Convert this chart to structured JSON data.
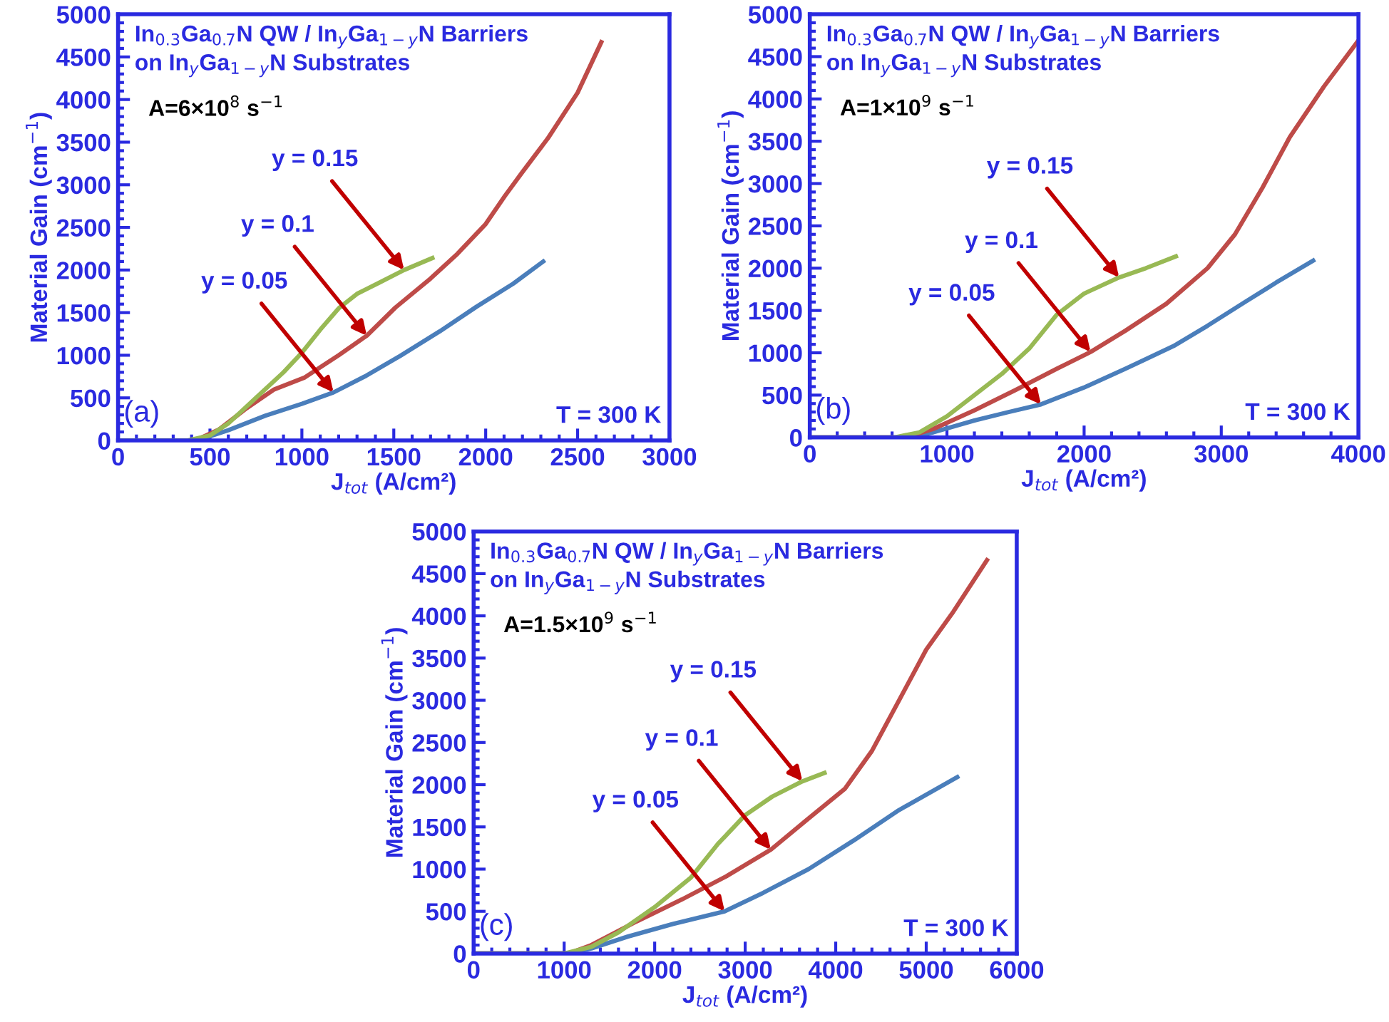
{
  "chart_data": [
    {
      "type": "line",
      "xlabel": "J$_{tot}$ (A/cm²)",
      "ylabel": "Material Gain (cm$^{−1}$)",
      "xlim": [
        0,
        3000
      ],
      "xticks": [
        0,
        500,
        1000,
        1500,
        2000,
        2500,
        3000
      ],
      "ylim": [
        0,
        5000
      ],
      "yticks": [
        0,
        500,
        1000,
        1500,
        2000,
        2500,
        3000,
        3500,
        4000,
        4500,
        5000
      ],
      "grid": false,
      "legend": false,
      "series": [
        {
          "color": "#4a7ebb",
          "x": [
            0,
            430,
            600,
            800,
            1000,
            1172,
            1350,
            1535,
            1750,
            1950,
            2150,
            2313
          ],
          "values": [
            0,
            0,
            120,
            290,
            430,
            564,
            760,
            993,
            1280,
            1569,
            1840,
            2100
          ]
        },
        {
          "color": "#be4b48",
          "x": [
            0,
            420,
            550,
            700,
            850,
            1016,
            1200,
            1353,
            1509,
            1700,
            1846,
            2000,
            2105,
            2200,
            2338,
            2500,
            2629
          ],
          "values": [
            0,
            0,
            130,
            380,
            600,
            740,
            1000,
            1230,
            1560,
            1900,
            2190,
            2540,
            2870,
            3150,
            3544,
            4080,
            4673
          ]
        },
        {
          "color": "#98b954",
          "x": [
            0,
            380,
            500,
            600,
            750,
            900,
            1000,
            1100,
            1200,
            1300,
            1420,
            1556,
            1710
          ],
          "values": [
            0,
            0,
            60,
            200,
            500,
            800,
            1030,
            1300,
            1550,
            1720,
            1850,
            2000,
            2140
          ]
        }
      ],
      "annotations": [
        "In$_{0.3}$Ga$_{0.7}$N QW / In$_{y}$Ga$_{1−y}$N Barriers\non In$_{y}$Ga$_{1−y}$N Substrates",
        "A=6×10$^{8}$ s$^{−1}$",
        "(a)",
        "T = 300 K",
        {
          "text": "y = 0.05",
          "x": 1172,
          "y": 564
        },
        {
          "text": "y = 0.1",
          "x": 1353,
          "y": 1230
        },
        {
          "text": "y = 0.15",
          "x": 1556,
          "y": 2000
        }
      ]
    },
    {
      "type": "line",
      "xlabel": "J$_{tot}$ (A/cm²)",
      "ylabel": "Material Gain (cm$^{−1}$)",
      "xlim": [
        0,
        4000
      ],
      "xticks": [
        0,
        1000,
        2000,
        3000,
        4000
      ],
      "ylim": [
        0,
        5000
      ],
      "yticks": [
        0,
        500,
        1000,
        1500,
        2000,
        2500,
        3000,
        3500,
        4000,
        4500,
        5000
      ],
      "grid": false,
      "legend": false,
      "series": [
        {
          "color": "#4a7ebb",
          "x": [
            0,
            700,
            900,
            1200,
            1450,
            1685,
            2000,
            2300,
            2652,
            2900,
            3173,
            3400,
            3670
          ],
          "values": [
            0,
            0,
            60,
            200,
            300,
            390,
            590,
            810,
            1080,
            1320,
            1600,
            1830,
            2090
          ]
        },
        {
          "color": "#be4b48",
          "x": [
            0,
            700,
            900,
            1200,
            1500,
            1800,
            2047,
            2300,
            2600,
            2900,
            3100,
            3300,
            3500,
            3750,
            3990
          ],
          "values": [
            0,
            0,
            100,
            320,
            560,
            810,
            1010,
            1260,
            1580,
            2000,
            2400,
            2950,
            3550,
            4150,
            4670
          ]
        },
        {
          "color": "#98b954",
          "x": [
            0,
            620,
            800,
            1000,
            1200,
            1400,
            1600,
            1800,
            2000,
            2255,
            2450,
            2669
          ],
          "values": [
            0,
            0,
            60,
            250,
            500,
            750,
            1050,
            1450,
            1700,
            1890,
            2000,
            2140
          ]
        }
      ],
      "annotations": [
        "In$_{0.3}$Ga$_{0.7}$N QW / In$_{y}$Ga$_{1−y}$N Barriers\non In$_{y}$Ga$_{1−y}$N Substrates",
        "A=1×10$^{9}$ s$^{−1}$",
        "(b)",
        "T = 300 K",
        {
          "text": "y = 0.05",
          "x": 1685,
          "y": 390
        },
        {
          "text": "y = 0.1",
          "x": 2047,
          "y": 1010
        },
        {
          "text": "y = 0.15",
          "x": 2255,
          "y": 1890
        }
      ]
    },
    {
      "type": "line",
      "xlabel": "J$_{tot}$ (A/cm²)",
      "ylabel": "Material Gain (cm$^{−1}$)",
      "xlim": [
        0,
        6000
      ],
      "xticks": [
        0,
        1000,
        2000,
        3000,
        4000,
        5000,
        6000
      ],
      "ylim": [
        0,
        5000
      ],
      "yticks": [
        0,
        500,
        1000,
        1500,
        2000,
        2500,
        3000,
        3500,
        4000,
        4500,
        5000
      ],
      "grid": false,
      "legend": false,
      "series": [
        {
          "color": "#4a7ebb",
          "x": [
            0,
            1050,
            1300,
            1700,
            2200,
            2773,
            3200,
            3700,
            4200,
            4700,
            5343
          ],
          "values": [
            0,
            0,
            60,
            200,
            350,
            500,
            720,
            1000,
            1340,
            1700,
            2090
          ]
        },
        {
          "color": "#be4b48",
          "x": [
            0,
            1050,
            1300,
            1800,
            2300,
            2800,
            3283,
            3700,
            4100,
            4400,
            4700,
            5000,
            5300,
            5671
          ],
          "values": [
            0,
            0,
            100,
            380,
            640,
            920,
            1230,
            1600,
            1950,
            2400,
            3000,
            3600,
            4050,
            4660
          ]
        },
        {
          "color": "#98b954",
          "x": [
            0,
            1000,
            1300,
            1600,
            2000,
            2400,
            2700,
            3000,
            3300,
            3632,
            3876
          ],
          "values": [
            0,
            0,
            80,
            250,
            550,
            900,
            1300,
            1640,
            1860,
            2040,
            2140
          ]
        }
      ],
      "annotations": [
        "In$_{0.3}$Ga$_{0.7}$N QW / In$_{y}$Ga$_{1−y}$N Barriers\non In$_{y}$Ga$_{1−y}$N Substrates",
        "A=1.5×10$^{9}$ s$^{−1}$",
        "(c)",
        "T = 300 K",
        {
          "text": "y = 0.05",
          "x": 2773,
          "y": 500
        },
        {
          "text": "y = 0.1",
          "x": 3283,
          "y": 1230
        },
        {
          "text": "y = 0.15",
          "x": 3632,
          "y": 2040
        }
      ]
    }
  ]
}
